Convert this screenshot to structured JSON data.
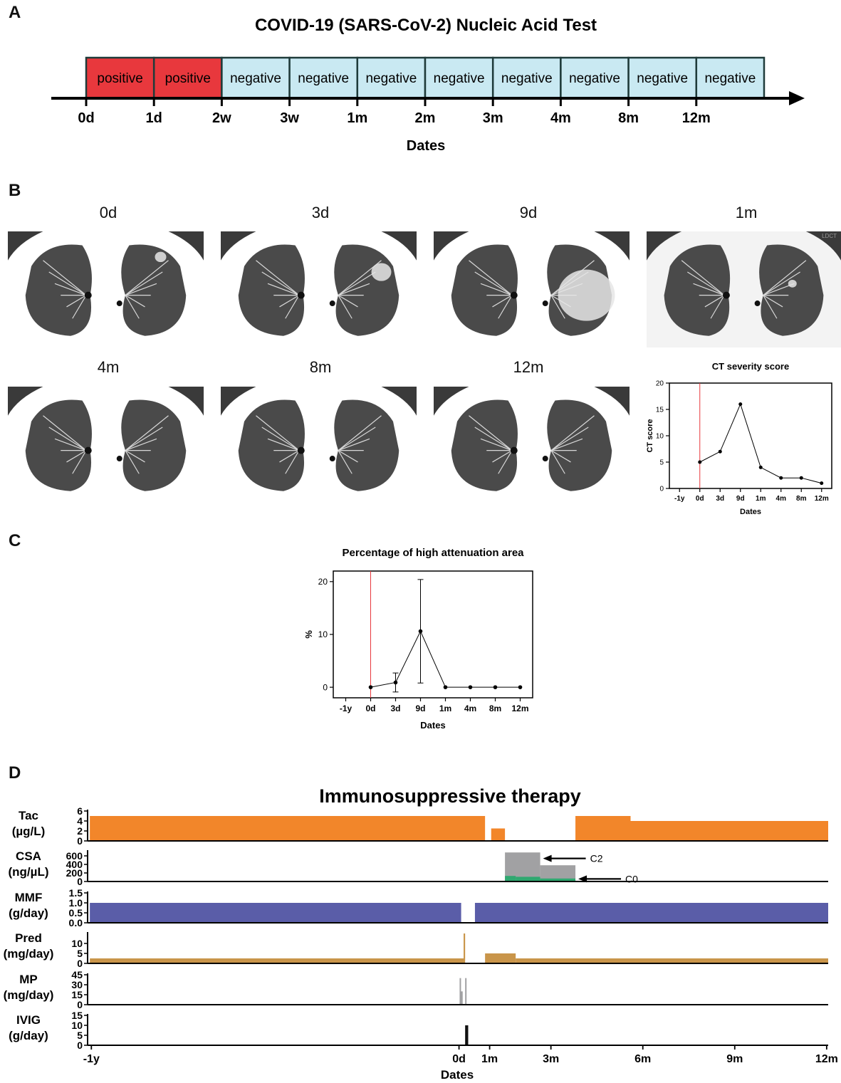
{
  "panels": {
    "a": "A",
    "b": "B",
    "c": "C",
    "d": "D"
  },
  "panel_a": {
    "title": "COVID-19 (SARS-CoV-2) Nucleic Acid Test",
    "xlabel": "Dates",
    "colors": {
      "positive": "#e8383d",
      "negative": "#c9e9f2",
      "border": "#1f3b3a"
    },
    "segments": [
      {
        "result": "positive",
        "start": "0d",
        "end": "1d"
      },
      {
        "result": "positive",
        "start": "1d",
        "end": "2w"
      },
      {
        "result": "negative",
        "start": "2w",
        "end": "3w"
      },
      {
        "result": "negative",
        "start": "3w",
        "end": "1m"
      },
      {
        "result": "negative",
        "start": "1m",
        "end": "2m"
      },
      {
        "result": "negative",
        "start": "2m",
        "end": "3m"
      },
      {
        "result": "negative",
        "start": "3m",
        "end": "4m"
      },
      {
        "result": "negative",
        "start": "4m",
        "end": "8m"
      },
      {
        "result": "negative",
        "start": "8m",
        "end": "12m"
      },
      {
        "result": "negative",
        "start": "12m",
        "end": ""
      }
    ],
    "ticks": [
      "0d",
      "1d",
      "2w",
      "3w",
      "1m",
      "2m",
      "3m",
      "4m",
      "8m",
      "12m"
    ]
  },
  "panel_b": {
    "scans": [
      "0d",
      "3d",
      "9d",
      "1m",
      "4m",
      "8m",
      "12m"
    ],
    "scan_watermark": "LDCT"
  },
  "chart_data": [
    {
      "type": "line",
      "title": "CT severity score",
      "xlabel": "Dates",
      "ylabel": "CT score",
      "categories": [
        "-1y",
        "0d",
        "3d",
        "9d",
        "1m",
        "4m",
        "8m",
        "12m"
      ],
      "values": [
        null,
        5,
        7,
        16,
        4,
        2,
        2,
        1
      ],
      "ylim": [
        0,
        20
      ],
      "yticks": [
        0,
        5,
        10,
        15,
        20
      ],
      "marker_line_at": "0d",
      "marker_color": "#e8383d"
    },
    {
      "type": "line",
      "title": "Percentage of high attenuation area",
      "xlabel": "Dates",
      "ylabel": "%",
      "categories": [
        "-1y",
        "0d",
        "3d",
        "9d",
        "1m",
        "4m",
        "8m",
        "12m"
      ],
      "values": [
        null,
        0,
        0.9,
        10.6,
        0,
        0,
        0,
        0
      ],
      "error": [
        null,
        0,
        1.8,
        9.8,
        0,
        0,
        0,
        0
      ],
      "ylim": [
        -2,
        22
      ],
      "yticks": [
        0,
        10,
        20
      ],
      "marker_line_at": "0d",
      "marker_color": "#e8383d"
    },
    {
      "type": "bar",
      "title": "Immunosuppressive therapy",
      "xlabel": "Dates",
      "x_unit": "months relative to 0d",
      "xlim": [
        -12.1,
        12.05
      ],
      "xticks": [
        {
          "label": "-1y",
          "value": -12
        },
        {
          "label": "0d",
          "value": 0
        },
        {
          "label": "1m",
          "value": 1
        },
        {
          "label": "3m",
          "value": 3
        },
        {
          "label": "6m",
          "value": 6
        },
        {
          "label": "9m",
          "value": 9
        },
        {
          "label": "12m",
          "value": 12
        }
      ],
      "rows": [
        {
          "name": "Tac",
          "unit": "(µg/L)",
          "ylim": [
            0,
            6
          ],
          "yticks": [
            "0",
            "2",
            "4",
            "6"
          ],
          "yvals": [
            0,
            2,
            4,
            6
          ],
          "bars": [
            {
              "x0": -12.05,
              "x1": 0.85,
              "y": 5,
              "color": "#f2862a"
            },
            {
              "x0": 1.05,
              "x1": 1.5,
              "y": 2.5,
              "color": "#f2862a"
            },
            {
              "x0": 3.8,
              "x1": 5.6,
              "y": 5,
              "color": "#f2862a"
            },
            {
              "x0": 5.6,
              "x1": 12.05,
              "y": 4,
              "color": "#f2862a"
            }
          ]
        },
        {
          "name": "CSA",
          "unit": "(ng/µL)",
          "ylim": [
            0,
            700
          ],
          "yticks": [
            "0",
            "200",
            "400",
            "600"
          ],
          "yvals": [
            0,
            200,
            400,
            600
          ],
          "bars": [
            {
              "x0": 1.5,
              "x1": 2.65,
              "y": 680,
              "color": "#a1a1a3"
            },
            {
              "x0": 2.65,
              "x1": 3.8,
              "y": 380,
              "color": "#a1a1a3"
            },
            {
              "x0": 1.5,
              "x1": 1.85,
              "y": 130,
              "color": "#2fa870"
            },
            {
              "x0": 1.85,
              "x1": 2.65,
              "y": 110,
              "color": "#2fa870"
            },
            {
              "x0": 2.65,
              "x1": 3.8,
              "y": 70,
              "color": "#2fa870"
            }
          ],
          "annotations": [
            {
              "text": "C2",
              "x_value": 2.65,
              "y_value": 540
            },
            {
              "text": "C0",
              "x_value": 3.8,
              "y_value": 60
            }
          ]
        },
        {
          "name": "MMF",
          "unit": "(g/day)",
          "ylim": [
            0,
            1.5
          ],
          "yticks": [
            "0.0",
            "0.5",
            "1.0",
            "1.5"
          ],
          "yvals": [
            0,
            0.5,
            1,
            1.5
          ],
          "bars": [
            {
              "x0": -12.05,
              "x1": 0.07,
              "y": 1,
              "color": "#5a5da8"
            },
            {
              "x0": 0.52,
              "x1": 12.05,
              "y": 1,
              "color": "#5a5da8"
            }
          ]
        },
        {
          "name": "Pred",
          "unit": "(mg/day)",
          "ylim": [
            0,
            15
          ],
          "yticks": [
            "0",
            "5",
            "10"
          ],
          "yvals": [
            0,
            5,
            10
          ],
          "bars": [
            {
              "x0": -12.05,
              "x1": 0.15,
              "y": 2.5,
              "color": "#c9954a"
            },
            {
              "x0": 0.15,
              "x1": 0.2,
              "y": 15,
              "color": "#c9954a"
            },
            {
              "x0": 0.85,
              "x1": 1.85,
              "y": 5,
              "color": "#c9954a"
            },
            {
              "x0": 1.85,
              "x1": 12.05,
              "y": 2.5,
              "color": "#c9954a"
            }
          ]
        },
        {
          "name": "MP",
          "unit": "(mg/day)",
          "ylim": [
            0,
            45
          ],
          "yticks": [
            "0",
            "15",
            "30",
            "45"
          ],
          "yvals": [
            0,
            15,
            30,
            45
          ],
          "bars": [
            {
              "x0": 0.02,
              "x1": 0.05,
              "y": 40,
              "color": "#a1a1a3"
            },
            {
              "x0": 0.05,
              "x1": 0.12,
              "y": 20,
              "color": "#a1a1a3"
            },
            {
              "x0": 0.2,
              "x1": 0.24,
              "y": 40,
              "color": "#a1a1a3"
            }
          ]
        },
        {
          "name": "IVIG",
          "unit": "(g/day)",
          "ylim": [
            0,
            15
          ],
          "yticks": [
            "0",
            "5",
            "10",
            "15"
          ],
          "yvals": [
            0,
            5,
            10,
            15
          ],
          "bars": [
            {
              "x0": 0.2,
              "x1": 0.3,
              "y": 10,
              "color": "#111111"
            }
          ]
        }
      ]
    }
  ]
}
